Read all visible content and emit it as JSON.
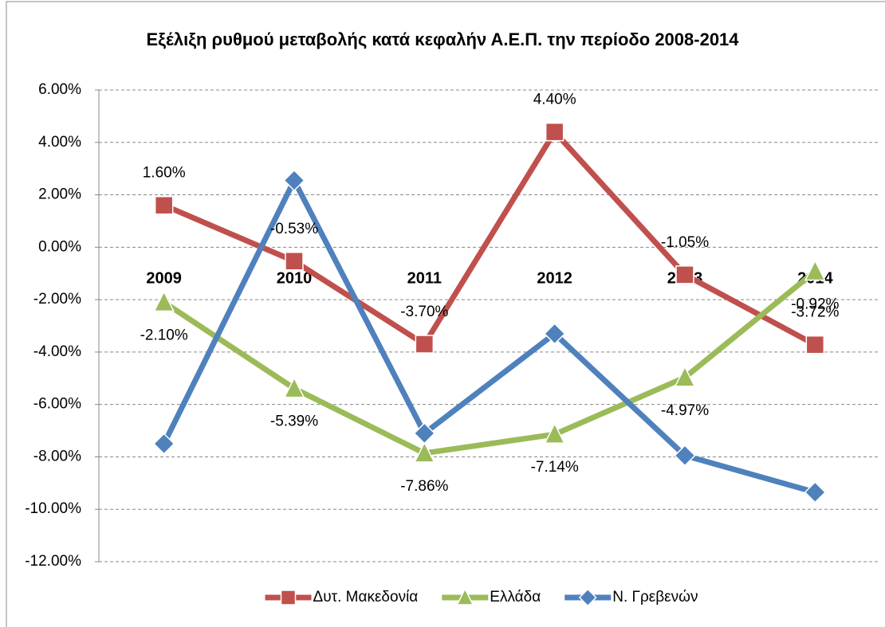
{
  "chart_data": {
    "type": "line",
    "title": "Εξέλιξη ρυθμού μεταβολής κατά κεφαλήν Α.Ε.Π. την περίοδο 2008-2014",
    "categories": [
      "2009",
      "2010",
      "2011",
      "2012",
      "2013",
      "2014"
    ],
    "series": [
      {
        "name": "Δυτ. Μακεδονία",
        "color": "#c0504d",
        "marker": "square",
        "values": [
          1.6,
          -0.53,
          -3.7,
          4.4,
          -1.05,
          -3.72
        ],
        "value_labels": [
          "1.60%",
          "-0.53%",
          "-3.70%",
          "4.40%",
          "-1.05%",
          "-3.72%"
        ],
        "label_position": "above"
      },
      {
        "name": "Ελλάδα",
        "color": "#9bbb59",
        "marker": "triangle",
        "values": [
          -2.1,
          -5.39,
          -7.86,
          -7.14,
          -4.97,
          -0.92
        ],
        "value_labels": [
          "-2.10%",
          "-5.39%",
          "-7.86%",
          "-7.14%",
          "-4.97%",
          "-0.92%"
        ],
        "label_position": "below"
      },
      {
        "name": "Ν. Γρεβενών",
        "color": "#4f81bd",
        "marker": "diamond",
        "values": [
          -7.5,
          2.55,
          -7.1,
          -3.3,
          -7.95,
          -9.35
        ]
      }
    ],
    "ylim": [
      -12,
      6
    ],
    "yticks": [
      {
        "value": -12,
        "label": "-12.00%"
      },
      {
        "value": -10,
        "label": "-10.00%"
      },
      {
        "value": -8,
        "label": "-8.00%"
      },
      {
        "value": -6,
        "label": "-6.00%"
      },
      {
        "value": -4,
        "label": "-4.00%"
      },
      {
        "value": -2,
        "label": "-2.00%"
      },
      {
        "value": 0,
        "label": "0.00%"
      },
      {
        "value": 2,
        "label": "2.00%"
      },
      {
        "value": 4,
        "label": "4.00%"
      },
      {
        "value": 6,
        "label": "6.00%"
      }
    ],
    "grid": true,
    "legend": "bottom"
  }
}
